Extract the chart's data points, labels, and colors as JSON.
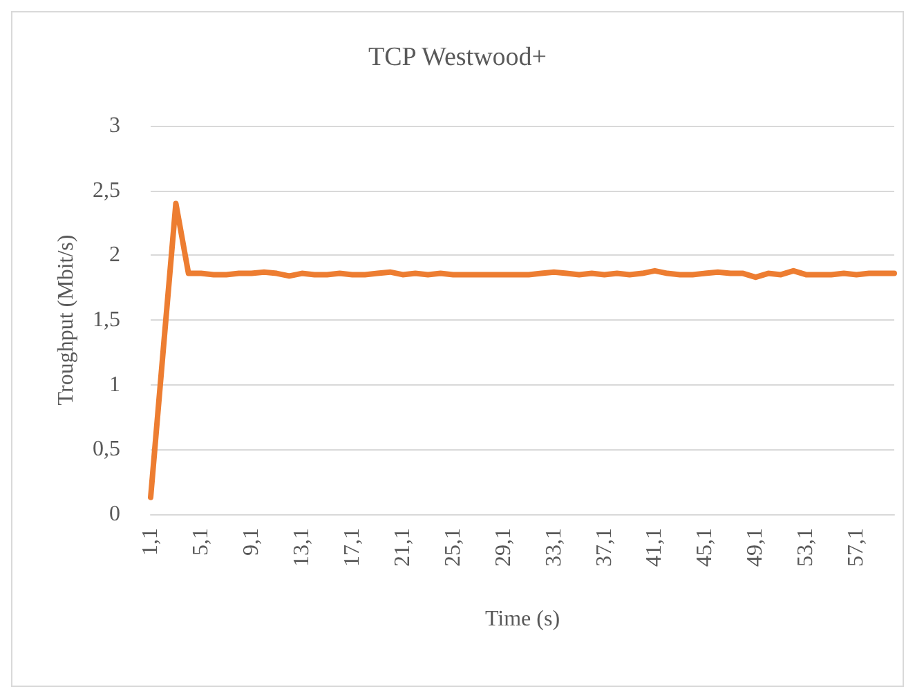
{
  "chart_data": {
    "type": "line",
    "title": "TCP Westwood+",
    "xlabel": "Time (s)",
    "ylabel": "Troughput (Mbit/s)",
    "categories": [
      "1,1",
      null,
      null,
      null,
      "5,1",
      null,
      null,
      null,
      "9,1",
      null,
      null,
      null,
      "13,1",
      null,
      null,
      null,
      "17,1",
      null,
      null,
      null,
      "21,1",
      null,
      null,
      null,
      "25,1",
      null,
      null,
      null,
      "29,1",
      null,
      null,
      null,
      "33,1",
      null,
      null,
      null,
      "37,1",
      null,
      null,
      null,
      "41,1",
      null,
      null,
      null,
      "45,1",
      null,
      null,
      null,
      "49,1",
      null,
      null,
      null,
      "53,1",
      null,
      null,
      null,
      "57,1",
      null,
      null,
      null
    ],
    "series": [
      {
        "color": "#ed7d31",
        "values": [
          0.13,
          1.27,
          2.4,
          1.86,
          1.86,
          1.85,
          1.85,
          1.86,
          1.86,
          1.87,
          1.86,
          1.84,
          1.86,
          1.85,
          1.85,
          1.86,
          1.85,
          1.85,
          1.86,
          1.87,
          1.85,
          1.86,
          1.85,
          1.86,
          1.85,
          1.85,
          1.85,
          1.85,
          1.85,
          1.85,
          1.85,
          1.86,
          1.87,
          1.86,
          1.85,
          1.86,
          1.85,
          1.86,
          1.85,
          1.86,
          1.88,
          1.86,
          1.85,
          1.85,
          1.86,
          1.87,
          1.86,
          1.86,
          1.83,
          1.86,
          1.85,
          1.88,
          1.85,
          1.85,
          1.85,
          1.86,
          1.85,
          1.86,
          1.86,
          1.86
        ]
      }
    ],
    "ylim": [
      0,
      3
    ],
    "yticks": [
      0,
      {
        "value": 0.5,
        "label": "0,5"
      },
      1,
      {
        "value": 1.5,
        "label": "1,5"
      },
      2,
      {
        "value": 2.5,
        "label": "2,5"
      },
      3
    ],
    "grid": "y",
    "marker": "none",
    "line_style": "solid"
  }
}
